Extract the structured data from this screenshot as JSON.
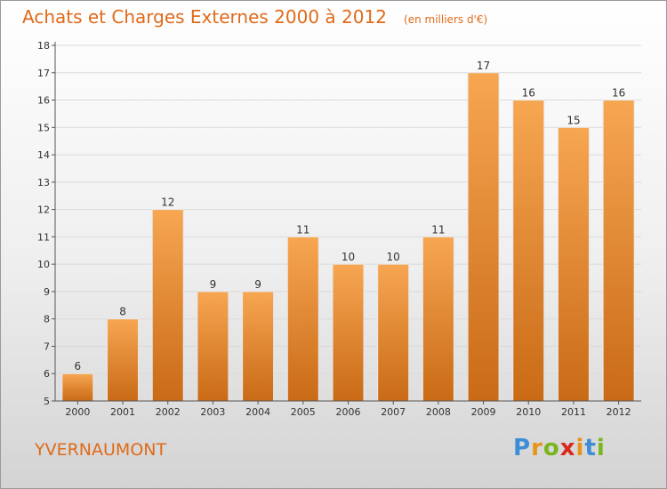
{
  "title": "Achats et Charges Externes 2000 à 2012",
  "unit": "(en milliers d'€)",
  "commune": "YVERNAUMONT",
  "logo": {
    "letters": [
      "P",
      "r",
      "o",
      "x",
      "i",
      "t",
      "i"
    ],
    "colors": [
      "#3b8ed6",
      "#e8941a",
      "#7ab51d",
      "#d9281c",
      "#e8941a",
      "#3b8ed6",
      "#7ab51d"
    ]
  },
  "colors": {
    "accent": "#e06a1a",
    "bar_top": "#f7a652",
    "bar_bottom": "#c96a16",
    "axis": "#555555",
    "grid": "#d9d9d9",
    "text": "#333333"
  },
  "chart_data": {
    "type": "bar",
    "title": "Achats et Charges Externes 2000 à 2012",
    "subtitle": "(en milliers d'€)",
    "categories": [
      "2000",
      "2001",
      "2002",
      "2003",
      "2004",
      "2005",
      "2006",
      "2007",
      "2008",
      "2009",
      "2010",
      "2011",
      "2012"
    ],
    "values": [
      6,
      8,
      12,
      9,
      9,
      11,
      10,
      10,
      11,
      17,
      16,
      15,
      16
    ],
    "ylim": [
      5,
      18
    ],
    "yticks": [
      5,
      6,
      7,
      8,
      9,
      10,
      11,
      12,
      13,
      14,
      15,
      16,
      17,
      18
    ],
    "grid": true,
    "data_labels": true
  }
}
